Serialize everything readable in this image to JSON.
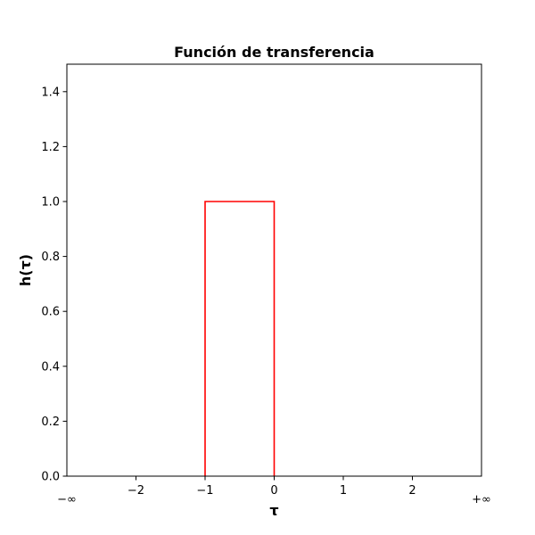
{
  "chart_data": {
    "type": "line",
    "title": "Función de transferencia",
    "xlabel": "τ",
    "ylabel": "h(τ)",
    "xlim": [
      -3,
      3
    ],
    "ylim": [
      0,
      1.5
    ],
    "x_ticks": [
      {
        "value": -3,
        "label": "−∞"
      },
      {
        "value": -2,
        "label": "−2"
      },
      {
        "value": -1,
        "label": "−1"
      },
      {
        "value": 0,
        "label": "0"
      },
      {
        "value": 1,
        "label": "1"
      },
      {
        "value": 2,
        "label": "2"
      },
      {
        "value": 3,
        "label": "+∞"
      }
    ],
    "y_ticks": [
      {
        "value": 0.0,
        "label": "0.0"
      },
      {
        "value": 0.2,
        "label": "0.2"
      },
      {
        "value": 0.4,
        "label": "0.4"
      },
      {
        "value": 0.6,
        "label": "0.6"
      },
      {
        "value": 0.8,
        "label": "0.8"
      },
      {
        "value": 1.0,
        "label": "1.0"
      },
      {
        "value": 1.2,
        "label": "1.2"
      },
      {
        "value": 1.4,
        "label": "1.4"
      }
    ],
    "series": [
      {
        "color": "#ff0000",
        "x": [
          -1,
          -1,
          0,
          0
        ],
        "y": [
          0,
          1,
          1,
          0
        ]
      }
    ],
    "grid": false,
    "legend": "none"
  }
}
